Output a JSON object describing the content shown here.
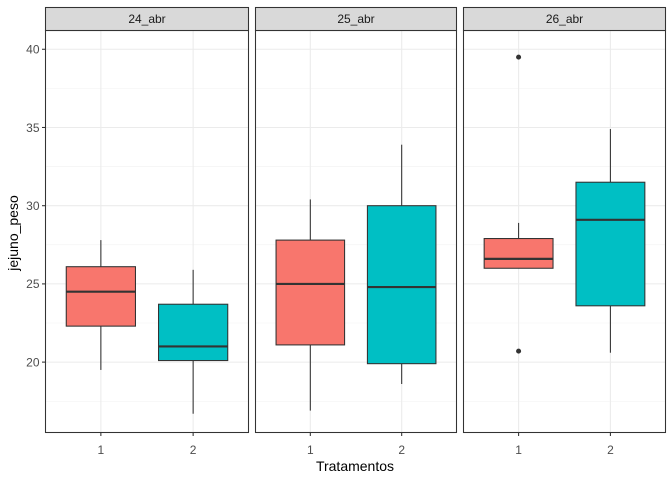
{
  "chart_data": {
    "type": "boxplot",
    "xlabel": "Tratamentos",
    "ylabel": "jejuno_peso",
    "ylim": [
      15.5,
      41.2
    ],
    "yticks": [
      20,
      25,
      30,
      35,
      40
    ],
    "grid": true,
    "categories": [
      "1",
      "2"
    ],
    "colors": {
      "1": "#F8766D",
      "2": "#00BFC4"
    },
    "facets": [
      {
        "label": "24_abr",
        "boxes": [
          {
            "category": "1",
            "min": 19.5,
            "q1": 22.3,
            "median": 24.5,
            "q3": 26.1,
            "max": 27.8,
            "outliers": []
          },
          {
            "category": "2",
            "min": 16.7,
            "q1": 20.1,
            "median": 21.0,
            "q3": 23.7,
            "max": 25.9,
            "outliers": []
          }
        ]
      },
      {
        "label": "25_abr",
        "boxes": [
          {
            "category": "1",
            "min": 16.9,
            "q1": 21.1,
            "median": 25.0,
            "q3": 27.8,
            "max": 30.4,
            "outliers": []
          },
          {
            "category": "2",
            "min": 18.6,
            "q1": 19.9,
            "median": 24.8,
            "q3": 30.0,
            "max": 33.9,
            "outliers": []
          }
        ]
      },
      {
        "label": "26_abr",
        "boxes": [
          {
            "category": "1",
            "min": 26.0,
            "q1": 26.0,
            "median": 26.6,
            "q3": 27.9,
            "max": 28.9,
            "outliers": [
              39.5,
              20.7
            ]
          },
          {
            "category": "2",
            "min": 20.6,
            "q1": 23.6,
            "median": 29.1,
            "q3": 31.5,
            "max": 34.9,
            "outliers": []
          }
        ]
      }
    ]
  }
}
